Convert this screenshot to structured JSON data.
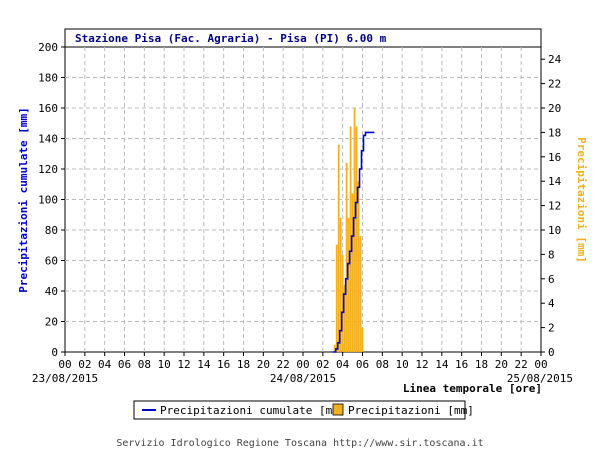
{
  "chart_data": {
    "type": "line+bar",
    "title": "Stazione Pisa (Fac. Agraria) - Pisa (PI) 6.00 m",
    "ylabel_left": "Precipitazioni cumulate [mm]",
    "ylabel_right": "Precipitazioni [mm]",
    "xlabel": "Linea temporale [ore]",
    "ylim_left": [
      0,
      200
    ],
    "ylim_right": [
      0,
      25
    ],
    "yticks_left": [
      0,
      20,
      40,
      60,
      80,
      100,
      120,
      140,
      160,
      180,
      200
    ],
    "yticks_right": [
      0,
      2,
      4,
      6,
      8,
      10,
      12,
      14,
      16,
      18,
      20,
      22,
      24
    ],
    "x_hours_total": 48,
    "xtick_labels": [
      "00",
      "02",
      "04",
      "06",
      "08",
      "10",
      "12",
      "14",
      "16",
      "18",
      "20",
      "22",
      "00",
      "02",
      "04",
      "06",
      "08",
      "10",
      "12",
      "14",
      "16",
      "18",
      "20",
      "22",
      "00"
    ],
    "date_labels": [
      {
        "label": "23/08/2015",
        "hour": 0
      },
      {
        "label": "24/08/2015",
        "hour": 24
      },
      {
        "label": "25/08/2015",
        "hour": 48
      }
    ],
    "grid": true,
    "series": [
      {
        "name": "Precipitazioni cumulate [mm]",
        "kind": "line",
        "axis": "left",
        "color": "#0000cc",
        "points": [
          [
            27.0,
            0
          ],
          [
            27.3,
            2
          ],
          [
            27.5,
            6
          ],
          [
            27.7,
            14
          ],
          [
            27.9,
            26
          ],
          [
            28.1,
            38
          ],
          [
            28.3,
            48
          ],
          [
            28.5,
            58
          ],
          [
            28.7,
            66
          ],
          [
            28.9,
            76
          ],
          [
            29.1,
            88
          ],
          [
            29.3,
            98
          ],
          [
            29.5,
            108
          ],
          [
            29.7,
            120
          ],
          [
            29.9,
            132
          ],
          [
            30.1,
            142
          ],
          [
            30.3,
            144
          ],
          [
            31.2,
            144
          ]
        ]
      },
      {
        "name": "Precipitazioni [mm]",
        "kind": "bar",
        "axis": "right",
        "color": "#f0b020",
        "points": [
          [
            27.2,
            0.6
          ],
          [
            27.4,
            8.8
          ],
          [
            27.6,
            17
          ],
          [
            27.8,
            11
          ],
          [
            28.0,
            8
          ],
          [
            28.2,
            5.5
          ],
          [
            28.4,
            15.5
          ],
          [
            28.6,
            11
          ],
          [
            28.8,
            18.5
          ],
          [
            29.0,
            13
          ],
          [
            29.2,
            20
          ],
          [
            29.4,
            18.5
          ],
          [
            29.6,
            14
          ],
          [
            29.8,
            9.5
          ],
          [
            30.0,
            2
          ]
        ]
      }
    ],
    "legend_position": "bottom"
  },
  "colors": {
    "axis_left": "#0000cc",
    "axis_right": "#f0b020",
    "grid": "#bbbbbb",
    "title_text": "#000080"
  },
  "footer": "Servizio Idrologico Regione Toscana http://www.sir.toscana.it"
}
